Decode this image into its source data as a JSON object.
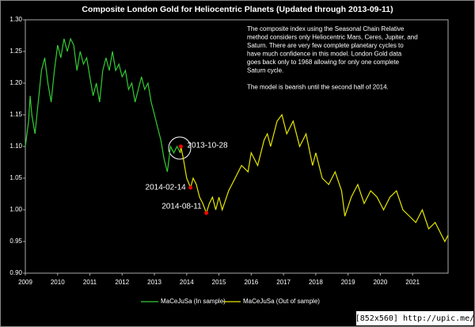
{
  "chart_data": {
    "type": "line",
    "title": "Composite London Gold for Heliocentric Planets (Updated through 2013-09-11)",
    "note": [
      "The composite index using the Seasonal Chain Relative",
      "method considers only Heliocentric Mars, Ceres, Jupiter, and",
      "Saturn.  There are very few complete planetary cycles to",
      "have much confidence in this model.  London Gold data",
      "goes back only to 1968 allowing for only one complete",
      "Saturn cycle.",
      "",
      "The model is bearish until the second half of 2014."
    ],
    "watermark": "[852x560] http://upic.me/",
    "xlim": [
      2009,
      2022.1
    ],
    "xticks": [
      2009,
      2010,
      2011,
      2012,
      2013,
      2014,
      2015,
      2016,
      2017,
      2018,
      2019,
      2020,
      2021
    ],
    "ylim": [
      0.9,
      1.3
    ],
    "yticks": [
      {
        "value": 0.9,
        "label": "0.90"
      },
      0.95,
      {
        "value": 1,
        "label": "1.00"
      },
      1.05,
      {
        "value": 1.1,
        "label": "1.10"
      },
      1.15,
      {
        "value": 1.2,
        "label": "1.20"
      },
      1.25,
      {
        "value": 1.3,
        "label": "1.30"
      }
    ],
    "series": [
      {
        "name": "MaCeJuSa (In sample)",
        "color": "#33cc33",
        "x": [
          2009.0,
          2009.1,
          2009.15,
          2009.2,
          2009.3,
          2009.4,
          2009.5,
          2009.6,
          2009.7,
          2009.8,
          2009.9,
          2010.0,
          2010.1,
          2010.2,
          2010.3,
          2010.4,
          2010.5,
          2010.6,
          2010.7,
          2010.8,
          2010.9,
          2011.0,
          2011.1,
          2011.2,
          2011.3,
          2011.4,
          2011.5,
          2011.6,
          2011.7,
          2011.8,
          2011.9,
          2012.0,
          2012.1,
          2012.2,
          2012.3,
          2012.4,
          2012.5,
          2012.6,
          2012.7,
          2012.8,
          2012.9,
          2013.0,
          2013.1,
          2013.2,
          2013.3,
          2013.4,
          2013.5,
          2013.6,
          2013.7,
          2013.8
        ],
        "values": [
          1.1,
          1.14,
          1.18,
          1.15,
          1.12,
          1.17,
          1.22,
          1.24,
          1.2,
          1.17,
          1.22,
          1.26,
          1.24,
          1.27,
          1.25,
          1.27,
          1.26,
          1.22,
          1.25,
          1.23,
          1.24,
          1.21,
          1.18,
          1.2,
          1.17,
          1.22,
          1.24,
          1.22,
          1.25,
          1.22,
          1.23,
          1.21,
          1.22,
          1.19,
          1.2,
          1.17,
          1.19,
          1.21,
          1.19,
          1.2,
          1.17,
          1.15,
          1.13,
          1.11,
          1.08,
          1.06,
          1.1,
          1.09,
          1.1,
          1.09
        ]
      },
      {
        "name": "MaCeJuSa (Out of sample)",
        "color": "#e6e600",
        "x": [
          2013.8,
          2013.82,
          2013.9,
          2014.0,
          2014.12,
          2014.2,
          2014.3,
          2014.4,
          2014.5,
          2014.61,
          2014.7,
          2014.8,
          2014.9,
          2015.0,
          2015.1,
          2015.3,
          2015.5,
          2015.7,
          2015.9,
          2016.0,
          2016.2,
          2016.4,
          2016.5,
          2016.6,
          2016.8,
          2016.95,
          2017.1,
          2017.3,
          2017.5,
          2017.7,
          2017.9,
          2018.0,
          2018.2,
          2018.4,
          2018.6,
          2018.8,
          2018.9,
          2019.1,
          2019.3,
          2019.5,
          2019.7,
          2019.9,
          2020.1,
          2020.3,
          2020.5,
          2020.7,
          2020.9,
          2021.1,
          2021.3,
          2021.5,
          2021.7,
          2021.9,
          2022.0,
          2022.1
        ],
        "values": [
          1.09,
          1.1,
          1.08,
          1.05,
          1.035,
          1.05,
          1.04,
          1.02,
          1.01,
          0.995,
          1.01,
          1.02,
          1.0,
          1.02,
          1.0,
          1.03,
          1.05,
          1.07,
          1.06,
          1.09,
          1.07,
          1.11,
          1.12,
          1.1,
          1.14,
          1.15,
          1.12,
          1.14,
          1.1,
          1.12,
          1.07,
          1.09,
          1.05,
          1.04,
          1.06,
          1.03,
          0.99,
          1.02,
          1.04,
          1.01,
          1.03,
          1.02,
          1.0,
          1.02,
          1.03,
          1.0,
          0.99,
          0.98,
          1.0,
          0.97,
          0.98,
          0.96,
          0.95,
          0.96
        ]
      }
    ],
    "annotations": [
      {
        "label": "2013-10-28",
        "x": 2013.82,
        "y": 1.1
      },
      {
        "label": "2014-02-14",
        "x": 2014.12,
        "y": 1.035
      },
      {
        "label": "2014-08-11",
        "x": 2014.61,
        "y": 0.995
      }
    ],
    "annotation_color": "#ff0000"
  }
}
